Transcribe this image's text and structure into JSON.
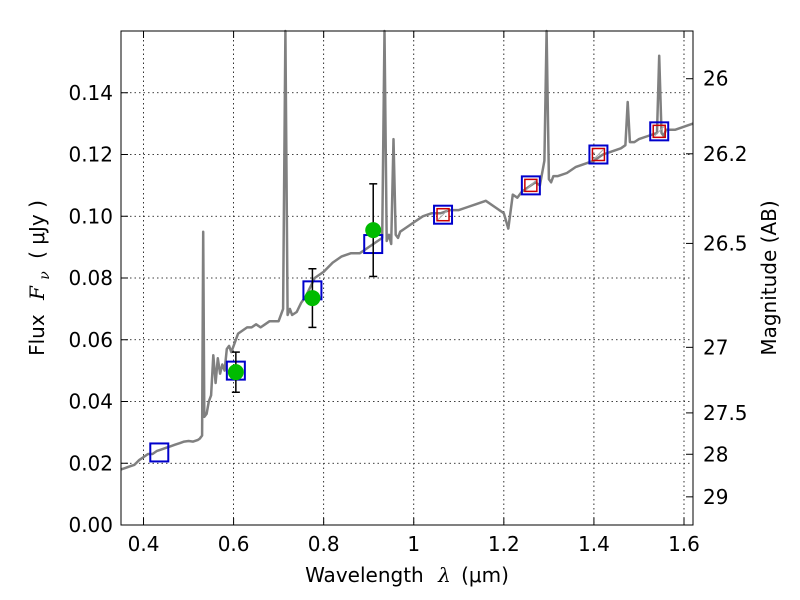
{
  "chart_data": {
    "type": "scatter",
    "xlabel": "Wavelength",
    "xlabel_symbol": "λ",
    "xlabel_unit": "(μm)",
    "ylabel": "Flux",
    "ylabel_symbol": "F",
    "ylabel_subscript": "ν",
    "ylabel_unit": "( μJy )",
    "ylabel_right": "Magnitude (AB)",
    "xlim": [
      0.35,
      1.62
    ],
    "ylim": [
      0.0,
      0.16
    ],
    "x_ticks": [
      0.4,
      0.6,
      0.8,
      1.0,
      1.2,
      1.4,
      1.6
    ],
    "x_tick_labels": [
      "0.4",
      "0.6",
      "0.8",
      "1",
      "1.2",
      "1.4",
      "1.6"
    ],
    "y_ticks": [
      0.0,
      0.02,
      0.04,
      0.06,
      0.08,
      0.1,
      0.12,
      0.14
    ],
    "y_tick_labels": [
      "0.00",
      "0.02",
      "0.04",
      "0.06",
      "0.08",
      "0.10",
      "0.12",
      "0.14"
    ],
    "mag_ticks": [
      26,
      26.2,
      26.5,
      27,
      27.5,
      28,
      29
    ],
    "mag_tick_labels": [
      "26",
      "26.2",
      "26.5",
      "27",
      "27.5",
      "28",
      "29"
    ],
    "grid": true,
    "series": [
      {
        "kind": "model_spectrum",
        "color": "#808080",
        "x": [
          0.35,
          0.36,
          0.37,
          0.38,
          0.39,
          0.4,
          0.41,
          0.42,
          0.43,
          0.44,
          0.45,
          0.46,
          0.47,
          0.48,
          0.49,
          0.5,
          0.51,
          0.52,
          0.525,
          0.53,
          0.5325,
          0.535,
          0.54,
          0.545,
          0.55,
          0.555,
          0.56,
          0.565,
          0.57,
          0.575,
          0.58,
          0.585,
          0.59,
          0.595,
          0.6,
          0.61,
          0.62,
          0.63,
          0.64,
          0.65,
          0.66,
          0.67,
          0.68,
          0.69,
          0.7,
          0.71,
          0.715,
          0.72,
          0.725,
          0.73,
          0.74,
          0.75,
          0.76,
          0.77,
          0.78,
          0.79,
          0.8,
          0.82,
          0.84,
          0.86,
          0.88,
          0.9,
          0.92,
          0.93,
          0.935,
          0.94,
          0.945,
          0.95,
          0.955,
          0.96,
          0.965,
          0.97,
          0.98,
          1.0,
          1.02,
          1.04,
          1.06,
          1.08,
          1.1,
          1.12,
          1.14,
          1.16,
          1.18,
          1.2,
          1.21,
          1.22,
          1.23,
          1.24,
          1.25,
          1.26,
          1.27,
          1.28,
          1.29,
          1.295,
          1.3,
          1.305,
          1.31,
          1.32,
          1.34,
          1.36,
          1.38,
          1.4,
          1.42,
          1.44,
          1.46,
          1.47,
          1.475,
          1.48,
          1.49,
          1.5,
          1.52,
          1.54,
          1.545,
          1.55,
          1.555,
          1.56,
          1.58,
          1.6,
          1.62
        ],
        "y": [
          0.018,
          0.0185,
          0.019,
          0.0195,
          0.021,
          0.022,
          0.023,
          0.023,
          0.024,
          0.0245,
          0.025,
          0.0255,
          0.026,
          0.0265,
          0.027,
          0.0272,
          0.027,
          0.0275,
          0.028,
          0.029,
          0.095,
          0.035,
          0.036,
          0.04,
          0.042,
          0.055,
          0.046,
          0.054,
          0.049,
          0.052,
          0.05,
          0.057,
          0.058,
          0.056,
          0.058,
          0.062,
          0.063,
          0.064,
          0.064,
          0.065,
          0.064,
          0.065,
          0.066,
          0.066,
          0.066,
          0.07,
          0.16,
          0.068,
          0.07,
          0.068,
          0.069,
          0.072,
          0.074,
          0.077,
          0.08,
          0.081,
          0.082,
          0.085,
          0.087,
          0.088,
          0.088,
          0.09,
          0.092,
          0.093,
          0.16,
          0.092,
          0.094,
          0.091,
          0.125,
          0.094,
          0.093,
          0.095,
          0.096,
          0.098,
          0.1,
          0.101,
          0.101,
          0.102,
          0.102,
          0.103,
          0.104,
          0.105,
          0.103,
          0.101,
          0.096,
          0.107,
          0.106,
          0.108,
          0.109,
          0.11,
          0.111,
          0.11,
          0.118,
          0.16,
          0.112,
          0.111,
          0.113,
          0.113,
          0.114,
          0.116,
          0.117,
          0.118,
          0.12,
          0.121,
          0.122,
          0.123,
          0.137,
          0.124,
          0.124,
          0.125,
          0.126,
          0.127,
          0.152,
          0.127,
          0.126,
          0.128,
          0.128,
          0.129,
          0.13
        ]
      },
      {
        "kind": "model_photometry",
        "shape": "open-square",
        "color": "#0000cc",
        "x": [
          0.435,
          0.605,
          0.775,
          0.91,
          1.065,
          1.26,
          1.41,
          1.545
        ],
        "y": [
          0.0235,
          0.05,
          0.076,
          0.091,
          0.1005,
          0.11,
          0.12,
          0.1275
        ]
      },
      {
        "kind": "filter_curves",
        "shape": "small-square",
        "color": "#cc0000",
        "x": [
          1.065,
          1.26,
          1.41,
          1.545
        ],
        "y": [
          0.1005,
          0.11,
          0.12,
          0.1275
        ]
      },
      {
        "kind": "observed",
        "shape": "filled-circle",
        "color": "#00bb00",
        "x": [
          0.605,
          0.775,
          0.91
        ],
        "y": [
          0.0495,
          0.0735,
          0.0955
        ],
        "yerr": [
          0.0065,
          0.0095,
          0.015
        ]
      }
    ]
  }
}
